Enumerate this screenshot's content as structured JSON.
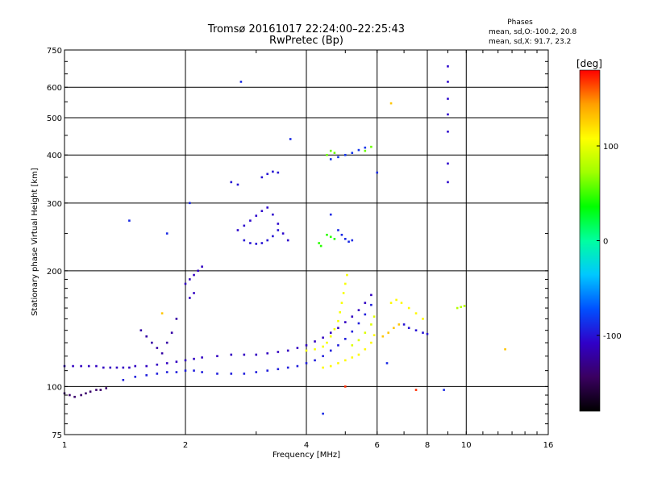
{
  "chart_data": {
    "type": "scatter",
    "title": "Tromsø 20161017 22:24:00–22:25:43",
    "subtitle": "RwPretec (Bp)",
    "xlabel": "Frequency [MHz]",
    "ylabel": "Stationary phase Virtual Height [km]",
    "x_scale": "log",
    "y_scale": "log",
    "xlim": [
      1,
      16
    ],
    "ylim": [
      75,
      750
    ],
    "x_ticks": [
      1,
      2,
      4,
      6,
      8,
      10,
      16
    ],
    "y_ticks": [
      75,
      100,
      200,
      300,
      400,
      500,
      600,
      750
    ],
    "grid": true,
    "phase_box": {
      "title": "Phases",
      "line1": "mean, sd,O:-100.2, 20.8",
      "line2": "mean, sd,X:  91.7, 23.2"
    },
    "colorbar": {
      "label": "[deg]",
      "range": [
        -180,
        180
      ],
      "ticks": [
        100,
        0,
        -100
      ],
      "colors": [
        "#000000",
        "#3a0060",
        "#3000c8",
        "#0050ff",
        "#00c8ff",
        "#00ffa0",
        "#00ff00",
        "#a0ff00",
        "#ffff00",
        "#ffa000",
        "#ff0000"
      ]
    },
    "series": [
      {
        "phase": -110,
        "points": [
          [
            1.0,
            113
          ],
          [
            1.05,
            113
          ],
          [
            1.1,
            113
          ],
          [
            1.15,
            113
          ],
          [
            1.2,
            113
          ],
          [
            1.25,
            112
          ],
          [
            1.3,
            112
          ],
          [
            1.35,
            112
          ],
          [
            1.4,
            112
          ],
          [
            1.45,
            112
          ],
          [
            1.5,
            113
          ],
          [
            1.6,
            113
          ],
          [
            1.7,
            114
          ],
          [
            1.8,
            115
          ],
          [
            1.9,
            116
          ],
          [
            2.0,
            117
          ],
          [
            2.1,
            118
          ],
          [
            2.2,
            119
          ],
          [
            2.4,
            120
          ],
          [
            2.6,
            121
          ],
          [
            2.8,
            121
          ],
          [
            3.0,
            121
          ],
          [
            3.2,
            122
          ],
          [
            3.4,
            123
          ],
          [
            3.6,
            124
          ],
          [
            3.8,
            126
          ],
          [
            4.0,
            128
          ],
          [
            4.2,
            131
          ],
          [
            4.4,
            134
          ],
          [
            4.6,
            138
          ],
          [
            4.8,
            142
          ],
          [
            5.0,
            147
          ],
          [
            5.2,
            152
          ],
          [
            5.4,
            158
          ],
          [
            5.6,
            165
          ],
          [
            5.8,
            173
          ]
        ]
      },
      {
        "phase": -95,
        "points": [
          [
            1.4,
            104
          ],
          [
            1.5,
            106
          ],
          [
            1.6,
            107
          ],
          [
            1.7,
            108
          ],
          [
            1.8,
            109
          ],
          [
            1.9,
            109
          ],
          [
            2.0,
            110
          ],
          [
            2.1,
            110
          ],
          [
            2.2,
            109
          ],
          [
            2.4,
            108
          ],
          [
            2.6,
            108
          ],
          [
            2.8,
            108
          ],
          [
            3.0,
            109
          ],
          [
            3.2,
            110
          ],
          [
            3.4,
            111
          ],
          [
            3.6,
            112
          ],
          [
            3.8,
            113
          ],
          [
            4.0,
            115
          ],
          [
            4.2,
            117
          ],
          [
            4.4,
            120
          ],
          [
            4.6,
            124
          ],
          [
            4.8,
            128
          ],
          [
            5.0,
            133
          ],
          [
            5.2,
            139
          ],
          [
            5.4,
            146
          ],
          [
            5.6,
            154
          ],
          [
            5.8,
            163
          ]
        ]
      },
      {
        "phase": -140,
        "points": [
          [
            1.0,
            96
          ],
          [
            1.03,
            95
          ],
          [
            1.06,
            94
          ],
          [
            1.1,
            95
          ],
          [
            1.13,
            96
          ],
          [
            1.16,
            97
          ],
          [
            1.2,
            98
          ],
          [
            1.23,
            98
          ],
          [
            1.27,
            99
          ]
        ]
      },
      {
        "phase": 105,
        "points": [
          [
            4.0,
            124
          ],
          [
            4.2,
            125
          ],
          [
            4.4,
            127
          ],
          [
            4.5,
            130
          ],
          [
            4.6,
            135
          ],
          [
            4.7,
            141
          ],
          [
            4.8,
            148
          ],
          [
            4.85,
            156
          ],
          [
            4.9,
            165
          ],
          [
            4.95,
            175
          ],
          [
            5.0,
            185
          ],
          [
            5.05,
            195
          ]
        ]
      },
      {
        "phase": 110,
        "points": [
          [
            4.4,
            112
          ],
          [
            4.6,
            113
          ],
          [
            4.8,
            115
          ],
          [
            5.0,
            117
          ],
          [
            5.2,
            119
          ],
          [
            5.4,
            121
          ],
          [
            5.6,
            125
          ],
          [
            5.8,
            130
          ],
          [
            5.9,
            136
          ]
        ]
      },
      {
        "phase": 95,
        "points": [
          [
            5.2,
            128
          ],
          [
            5.4,
            132
          ],
          [
            5.6,
            138
          ],
          [
            5.8,
            145
          ],
          [
            5.9,
            152
          ]
        ]
      },
      {
        "phase": -105,
        "points": [
          [
            2.7,
            255
          ],
          [
            2.8,
            262
          ],
          [
            2.9,
            270
          ],
          [
            3.0,
            278
          ],
          [
            3.1,
            286
          ],
          [
            3.2,
            292
          ],
          [
            3.3,
            280
          ],
          [
            3.4,
            265
          ],
          [
            3.5,
            250
          ],
          [
            3.6,
            240
          ]
        ]
      },
      {
        "phase": -100,
        "points": [
          [
            2.8,
            240
          ],
          [
            2.9,
            236
          ],
          [
            3.0,
            235
          ],
          [
            3.1,
            236
          ],
          [
            3.2,
            240
          ],
          [
            3.3,
            246
          ],
          [
            3.4,
            255
          ]
        ]
      },
      {
        "phase": -120,
        "points": [
          [
            1.55,
            140
          ],
          [
            1.6,
            135
          ],
          [
            1.65,
            130
          ],
          [
            1.7,
            126
          ],
          [
            1.75,
            122
          ],
          [
            1.8,
            130
          ],
          [
            1.85,
            138
          ],
          [
            1.9,
            150
          ]
        ]
      },
      {
        "phase": -110,
        "points": [
          [
            2.0,
            185
          ],
          [
            2.05,
            190
          ],
          [
            2.1,
            195
          ],
          [
            2.15,
            200
          ],
          [
            2.2,
            205
          ],
          [
            2.05,
            170
          ],
          [
            2.1,
            175
          ]
        ]
      },
      {
        "phase": -85,
        "points": [
          [
            4.6,
            390
          ],
          [
            4.8,
            395
          ],
          [
            5.0,
            400
          ],
          [
            5.2,
            405
          ],
          [
            5.4,
            412
          ],
          [
            5.6,
            418
          ]
        ]
      },
      {
        "phase": 60,
        "points": [
          [
            4.5,
            400
          ],
          [
            4.6,
            410
          ],
          [
            4.7,
            405
          ],
          [
            5.6,
            410
          ],
          [
            5.8,
            420
          ]
        ]
      },
      {
        "phase": -90,
        "points": [
          [
            4.8,
            255
          ],
          [
            4.9,
            248
          ],
          [
            5.0,
            242
          ],
          [
            5.1,
            238
          ],
          [
            5.2,
            240
          ]
        ]
      },
      {
        "phase": 45,
        "points": [
          [
            4.5,
            248
          ],
          [
            4.6,
            245
          ],
          [
            4.7,
            242
          ],
          [
            4.3,
            236
          ],
          [
            4.35,
            232
          ]
        ]
      },
      {
        "phase": -100,
        "points": [
          [
            3.1,
            350
          ],
          [
            3.2,
            357
          ],
          [
            3.3,
            362
          ],
          [
            3.4,
            360
          ],
          [
            2.6,
            340
          ],
          [
            2.7,
            335
          ]
        ]
      },
      {
        "phase": -105,
        "points": [
          [
            9.0,
            680
          ],
          [
            9.0,
            620
          ],
          [
            9.0,
            560
          ],
          [
            9.0,
            510
          ],
          [
            9.0,
            460
          ],
          [
            9.0,
            380
          ],
          [
            9.0,
            340
          ]
        ]
      },
      {
        "phase": 110,
        "points": [
          [
            6.5,
            165
          ],
          [
            6.7,
            168
          ],
          [
            6.9,
            165
          ],
          [
            7.2,
            160
          ],
          [
            7.5,
            155
          ],
          [
            7.8,
            150
          ]
        ]
      },
      {
        "phase": 80,
        "points": [
          [
            9.5,
            160
          ],
          [
            9.7,
            161
          ],
          [
            9.9,
            162
          ]
        ]
      },
      {
        "phase": -100,
        "points": [
          [
            7.0,
            145
          ],
          [
            7.2,
            142
          ],
          [
            7.5,
            140
          ],
          [
            7.8,
            138
          ],
          [
            8.0,
            137
          ]
        ]
      },
      {
        "phase": 130,
        "points": [
          [
            6.2,
            135
          ],
          [
            6.4,
            138
          ],
          [
            6.6,
            142
          ],
          [
            6.8,
            145
          ]
        ]
      }
    ],
    "outliers": [
      {
        "phase": -90,
        "points": [
          [
            1.45,
            270
          ],
          [
            2.75,
            620
          ],
          [
            3.65,
            440
          ],
          [
            4.4,
            85
          ],
          [
            6.35,
            115
          ],
          [
            8.8,
            98
          ],
          [
            2.05,
            300
          ],
          [
            1.8,
            250
          ],
          [
            6.0,
            360
          ],
          [
            4.6,
            280
          ]
        ]
      },
      {
        "phase": 130,
        "points": [
          [
            6.5,
            545
          ],
          [
            12.5,
            125
          ],
          [
            1.75,
            155
          ]
        ]
      },
      {
        "phase": 170,
        "points": [
          [
            7.5,
            98
          ],
          [
            5.0,
            100
          ]
        ]
      }
    ]
  }
}
